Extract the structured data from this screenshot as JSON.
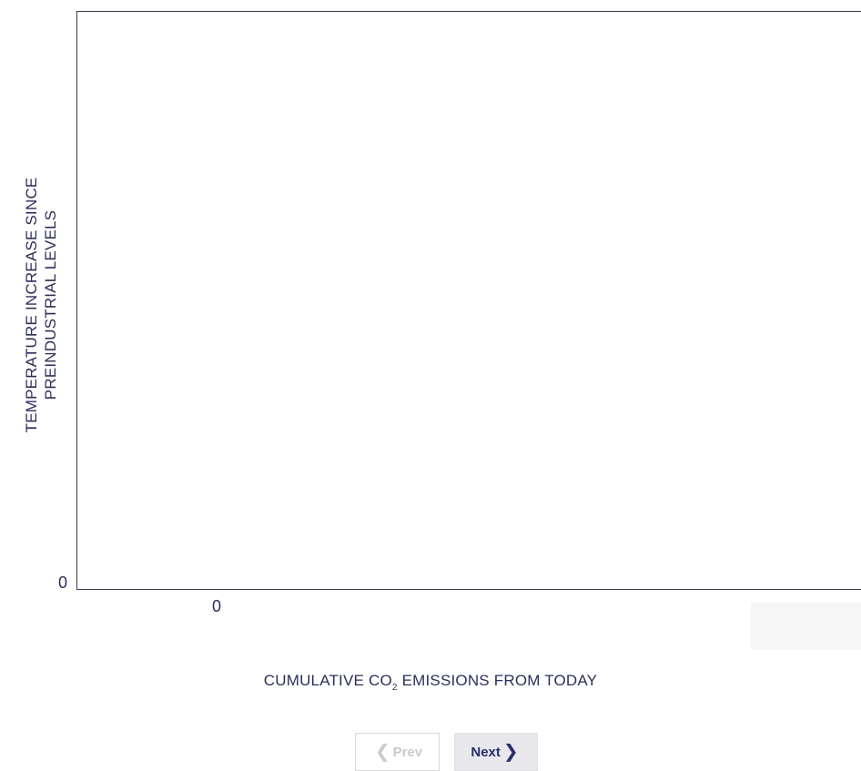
{
  "chart_data": {
    "type": "line",
    "title": "",
    "ylabel_line1": "TEMPERATURE INCREASE SINCE",
    "ylabel_line2": "PREINDUSTRIAL LEVELS",
    "xlabel_prefix": "CUMULATIVE CO",
    "xlabel_subscript": "2",
    "xlabel_suffix": " EMISSIONS FROM TODAY",
    "x_tick_labels": [
      "0"
    ],
    "y_tick_labels": [
      "0"
    ],
    "series": []
  },
  "navigation": {
    "prev_label": "Prev",
    "next_label": "Next",
    "prev_enabled": false,
    "next_enabled": true
  },
  "colors": {
    "text": "#2c2f5a",
    "axis": "#3a3a4a",
    "next_button_bg": "#e8e8ec",
    "prev_disabled_text": "#c9c9d0"
  }
}
